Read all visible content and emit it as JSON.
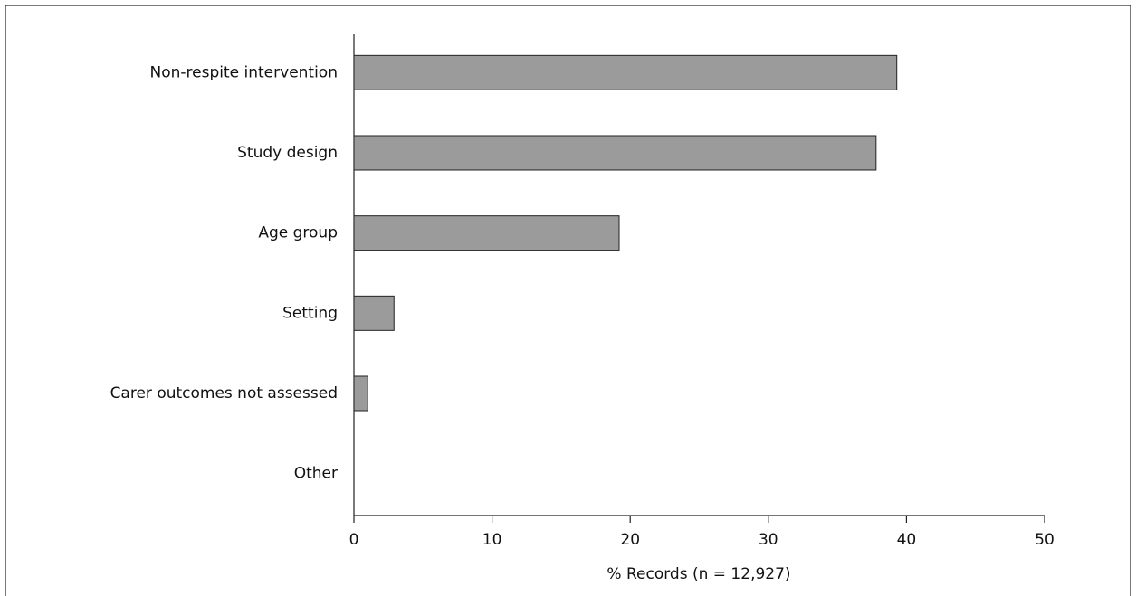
{
  "chart_data": {
    "type": "bar",
    "orientation": "horizontal",
    "x_label": "% Records (n = 12,927)",
    "categories": [
      "Non-respite intervention",
      "Study design",
      "Age group",
      "Setting",
      "Carer outcomes not assessed",
      "Other"
    ],
    "values": [
      39.3,
      37.8,
      19.2,
      2.9,
      1.0,
      0
    ],
    "color": "#9b9b9b",
    "xlim": [
      0,
      50
    ],
    "xticks": [
      0,
      10,
      20,
      30,
      40,
      50
    ],
    "grid": false
  }
}
